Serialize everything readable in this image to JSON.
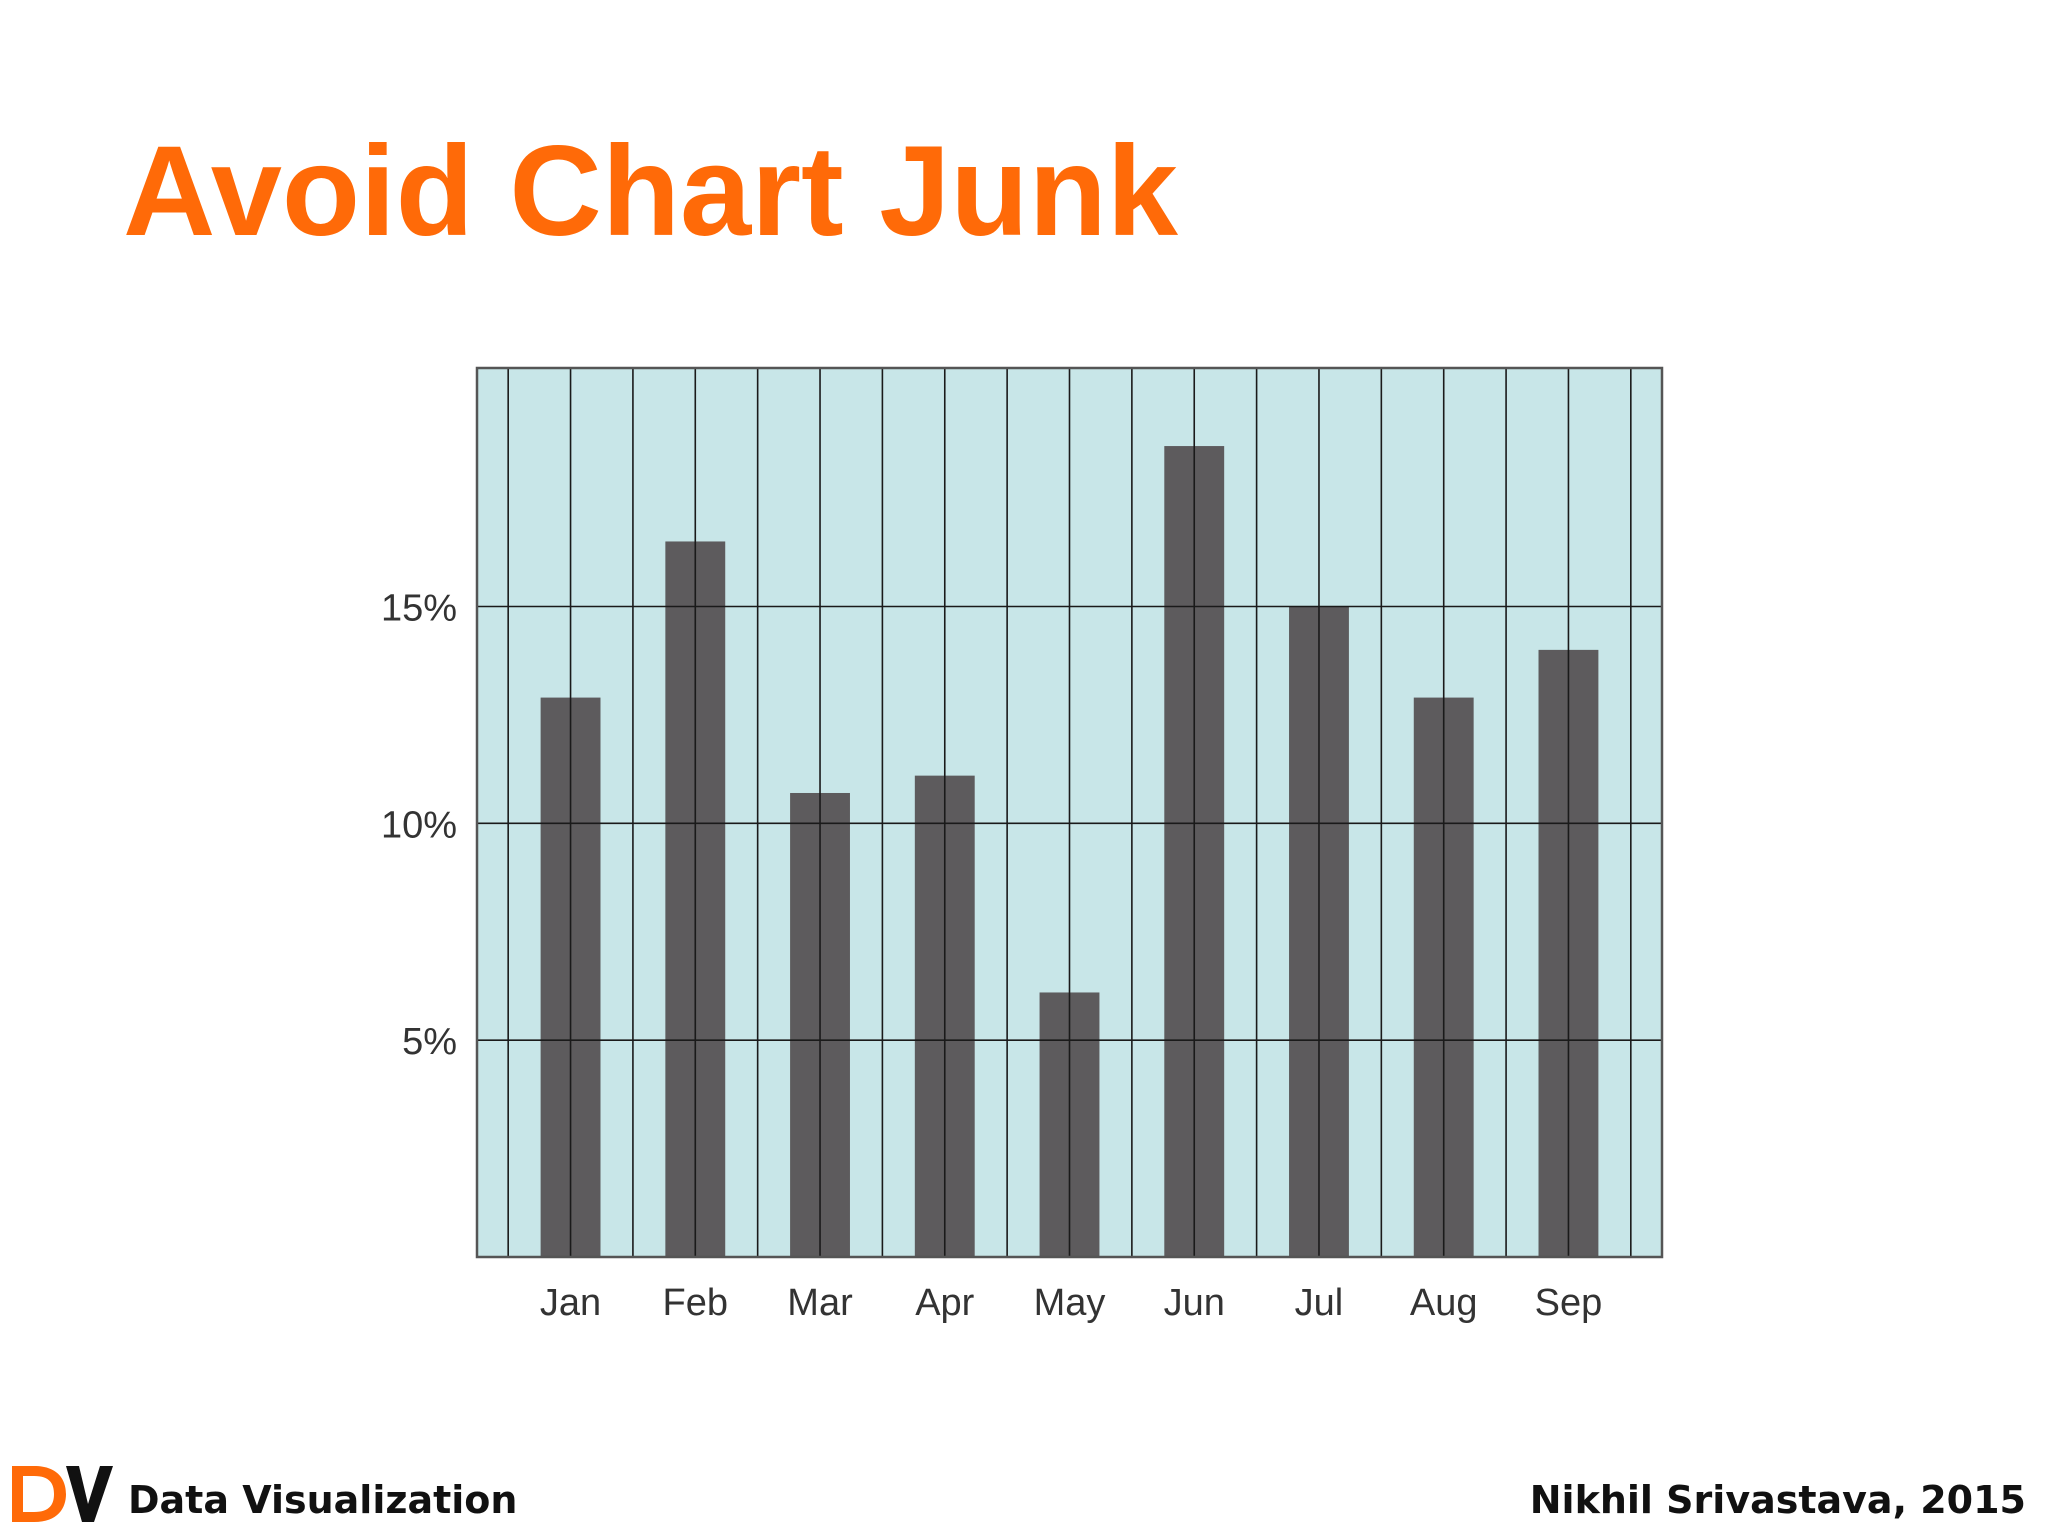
{
  "slide": {
    "title": "Avoid Chart Junk"
  },
  "footer": {
    "logo_text": "DV",
    "left_text": "Data Visualization",
    "right_text": "Nikhil Srivastava, 2015"
  },
  "colors": {
    "title": "#ff6a08",
    "plot_background": "#c8e6e8",
    "bar": "#5d5b5d",
    "grid": "#1a1a1a",
    "logo_d": "#ff6a08",
    "logo_v": "#111111"
  },
  "chart_data": {
    "type": "bar",
    "categories": [
      "Jan",
      "Feb",
      "Mar",
      "Apr",
      "May",
      "Jun",
      "Jul",
      "Aug",
      "Sep"
    ],
    "values": [
      12.9,
      16.5,
      10.7,
      11.1,
      6.1,
      18.7,
      15.0,
      12.9,
      14.0
    ],
    "value_unit": "%",
    "ylim": [
      0,
      20.5
    ],
    "yticks": [
      5,
      10,
      15
    ],
    "ytick_labels": [
      "5%",
      "10%",
      "15%"
    ],
    "title": "",
    "xlabel": "",
    "ylabel": "",
    "grid": true,
    "legend": false
  }
}
